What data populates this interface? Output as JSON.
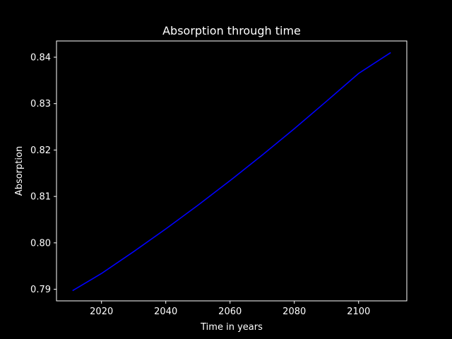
{
  "chart_data": {
    "type": "line",
    "title": "Absorption through time",
    "xlabel": "Time in years",
    "ylabel": "Absorption",
    "xlim": [
      2006,
      2115
    ],
    "ylim": [
      0.7875,
      0.8435
    ],
    "xticks": [
      2020,
      2040,
      2060,
      2080,
      2100
    ],
    "xtick_labels": [
      "2020",
      "2040",
      "2060",
      "2080",
      "2100"
    ],
    "yticks": [
      0.79,
      0.8,
      0.81,
      0.82,
      0.83,
      0.84
    ],
    "ytick_labels": [
      "0.79",
      "0.80",
      "0.81",
      "0.82",
      "0.83",
      "0.84"
    ],
    "grid": false,
    "background_color": "#000000",
    "axes_color": "#ffffff",
    "series": [
      {
        "color": "#0000ff",
        "x": [
          2011,
          2020,
          2030,
          2040,
          2050,
          2060,
          2070,
          2080,
          2090,
          2100,
          2110
        ],
        "y": [
          0.7897,
          0.7934,
          0.7981,
          0.803,
          0.8081,
          0.8134,
          0.8189,
          0.8246,
          0.8305,
          0.8365,
          0.841
        ]
      }
    ]
  }
}
